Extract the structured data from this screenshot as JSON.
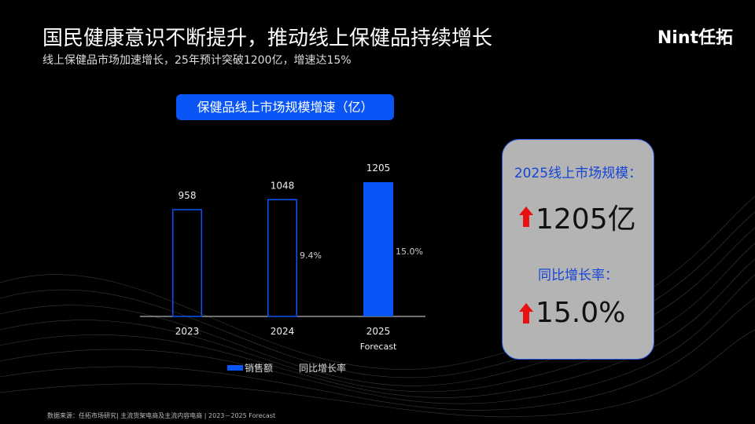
{
  "header": {
    "title": "国民健康意识不断提升，推动线上保健品持续增长",
    "subtitle": "线上保健品市场加速增长，25年预计突破1200亿，增速达15%",
    "logo": "Nint任拓"
  },
  "colors": {
    "accent": "#0a55f5",
    "card_bg": "#b4b4b4",
    "card_text": "#1445d8",
    "arrow": "#e81010"
  },
  "chart_data": {
    "type": "bar",
    "title": "保健品线上市场规模增速（亿）",
    "categories": [
      "2023",
      "2024",
      "2025"
    ],
    "category_sublabels": [
      "",
      "",
      "Forecast"
    ],
    "series": [
      {
        "name": "销售额",
        "values": [
          958,
          1048,
          1205
        ],
        "styles": [
          "outline",
          "outline",
          "filled"
        ]
      },
      {
        "name": "同比增长率",
        "values": [
          null,
          9.4,
          15.0
        ],
        "labels": [
          "",
          "9.4%",
          "15.0%"
        ]
      }
    ],
    "value_labels": [
      "958",
      "1048",
      "1205"
    ],
    "ylim": [
      0,
      1205
    ],
    "grid": false,
    "legend": "bottom"
  },
  "card": {
    "label1": "2025线上市场规模：",
    "value1": "1205亿",
    "label2": "同比增长率：",
    "value2": "15.0%"
  },
  "legend": {
    "sales": "销售额",
    "growth": "同比增长率"
  },
  "footer": {
    "source": "数据来源：任拓市场研究| 主流货架电商及主流内容电商 | 2023－2025 Forecast"
  }
}
